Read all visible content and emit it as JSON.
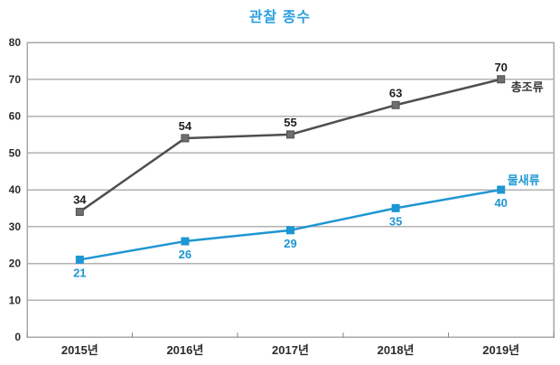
{
  "title": "관찰 종수",
  "colors": {
    "title": "#2b9fe0",
    "series_total": "#4f4f4f",
    "series_total_marker": "#6e6e6e",
    "series_waterfowl": "#1e96d2",
    "gridline": "#b2b2b2",
    "plot_border": "#a8a8a8",
    "tick": "#8a8a8a",
    "axis_label": "#2b2b2b",
    "value_label_dark": "#1f1f1f"
  },
  "chart_data": {
    "type": "line",
    "title": "관찰 종수",
    "categories": [
      "2015년",
      "2016년",
      "2017년",
      "2018년",
      "2019년"
    ],
    "series": [
      {
        "name": "총조류",
        "values": [
          34,
          54,
          55,
          63,
          70
        ],
        "color": "#4f4f4f",
        "marker_fill": "#6e6e6e",
        "label_position": "above",
        "name_label_offset": "below-right"
      },
      {
        "name": "물새류",
        "values": [
          21,
          26,
          29,
          35,
          40
        ],
        "color": "#1e96d2",
        "marker_fill": "#1e96d2",
        "label_position": "below",
        "name_label_offset": "above-right"
      }
    ],
    "xlabel": "",
    "ylabel": "",
    "ylim": [
      0,
      80
    ],
    "yticks": [
      0,
      10,
      20,
      30,
      40,
      50,
      60,
      70,
      80
    ],
    "grid": true,
    "legend_position": "end-of-line"
  }
}
